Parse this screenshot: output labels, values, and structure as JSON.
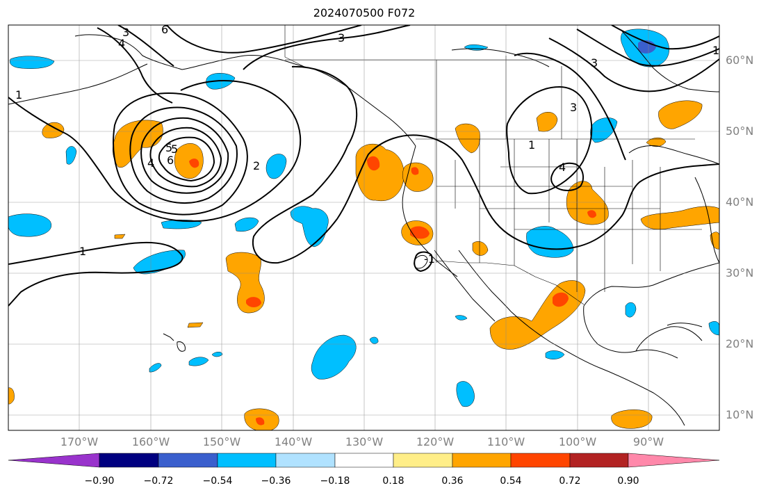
{
  "title": "2024070500 F072",
  "axes": {
    "lon_labels": [
      "170°W",
      "160°W",
      "150°W",
      "140°W",
      "130°W",
      "120°W",
      "110°W",
      "100°W",
      "90°W"
    ],
    "lat_labels": [
      "60°N",
      "50°N",
      "40°N",
      "30°N",
      "20°N",
      "10°N"
    ]
  },
  "contour_labels": [
    "3",
    "6",
    "4",
    "3",
    "1",
    "5",
    "4",
    "6",
    "5",
    "2",
    "1",
    "3",
    "1",
    "4",
    "3",
    "1",
    "-1"
  ],
  "colorbar": {
    "ticks": [
      "−0.90",
      "−0.72",
      "−0.54",
      "−0.36",
      "−0.18",
      "0.18",
      "0.36",
      "0.54",
      "0.72",
      "0.90"
    ],
    "colors": [
      "#9933cc",
      "#000080",
      "#3a5fcd",
      "#00bfff",
      "#b0e2ff",
      "#ffffff",
      "#ffee88",
      "#ffa500",
      "#ff4500",
      "#b22222",
      "#ff88aa"
    ]
  },
  "palette": {
    "land_line": "#000000",
    "grid": "#888888",
    "contour": "#000000",
    "orange": "#ffa500",
    "red": "#ff4500",
    "cyan": "#00bfff",
    "blue": "#3a5fcd"
  }
}
